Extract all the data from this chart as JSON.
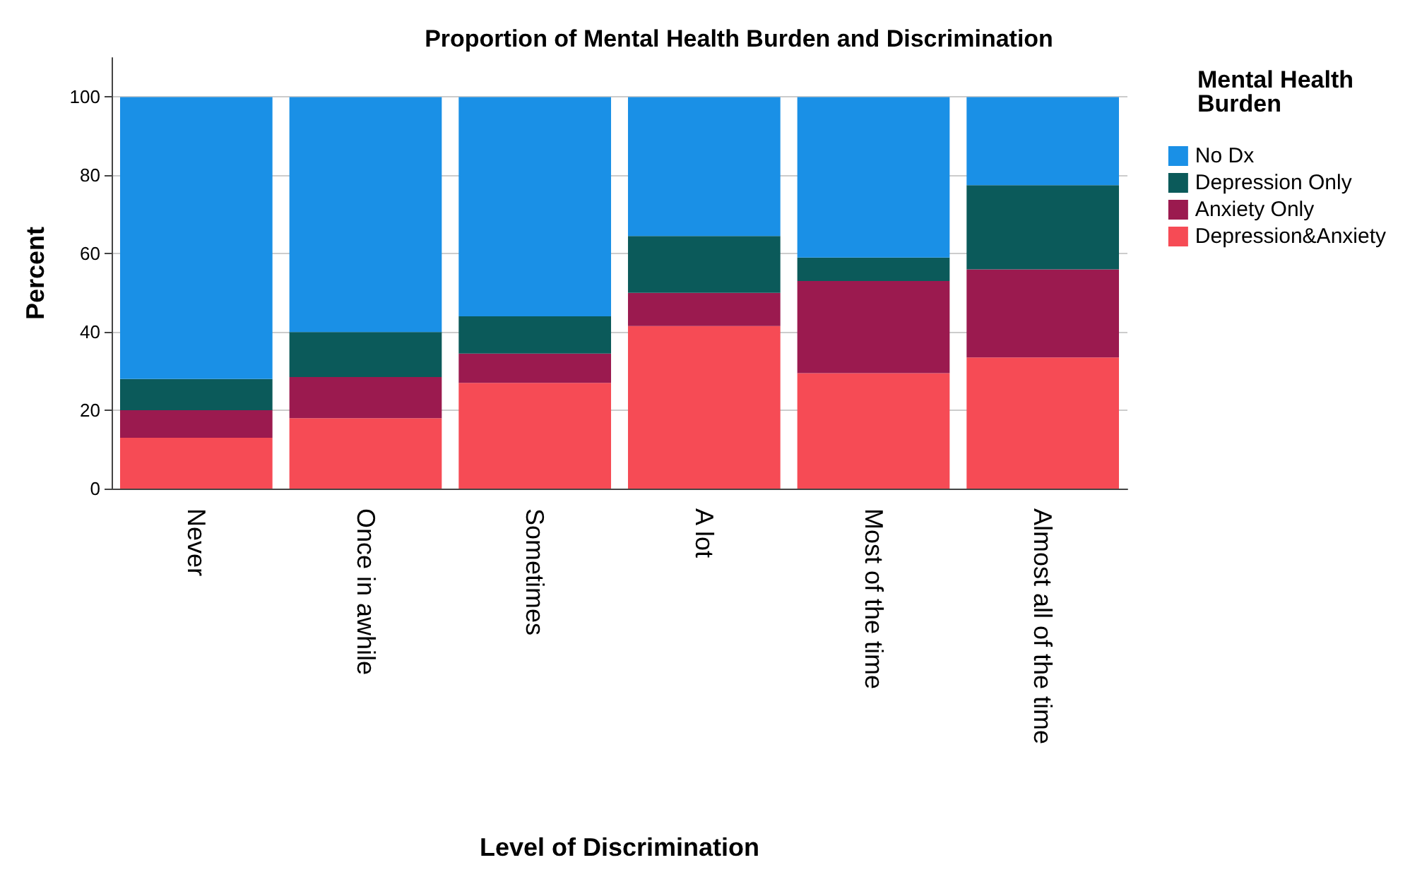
{
  "chart_data": {
    "type": "bar",
    "title": "Proportion of Mental Health Burden and Discrimination",
    "xlabel": "Level of Discrimination",
    "ylabel": "Percent",
    "legend_title": "Mental Health Burden",
    "categories": [
      "Never",
      "Once in awhile",
      "Sometimes",
      "A lot",
      "Most of the time",
      "Almost all of the time"
    ],
    "stacked": true,
    "ylim": [
      0,
      110
    ],
    "yticks": [
      0,
      20,
      40,
      60,
      80,
      100
    ],
    "grid": "y",
    "legend": "right",
    "series": [
      {
        "name": "Depression&Anxiety",
        "color": "#f64b55",
        "values": [
          13,
          18,
          27,
          41.5,
          29.5,
          33.5
        ]
      },
      {
        "name": "Anxiety Only",
        "color": "#9b1a4f",
        "values": [
          7,
          10.5,
          7.5,
          8.5,
          23.5,
          22.5
        ]
      },
      {
        "name": "Depression Only",
        "color": "#0b5a5a",
        "values": [
          8,
          11.5,
          9.5,
          14.5,
          6,
          21.5
        ]
      },
      {
        "name": "No Dx",
        "color": "#1a90e6",
        "values": [
          72,
          60,
          56,
          35.5,
          41,
          22.5
        ]
      }
    ]
  }
}
